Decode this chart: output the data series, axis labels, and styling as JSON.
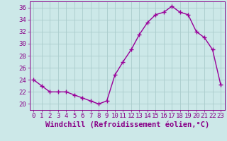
{
  "x": [
    0,
    1,
    2,
    3,
    4,
    5,
    6,
    7,
    8,
    9,
    10,
    11,
    12,
    13,
    14,
    15,
    16,
    17,
    18,
    19,
    20,
    21,
    22,
    23
  ],
  "y": [
    24,
    23,
    22,
    22,
    22,
    21.5,
    21,
    20.5,
    20,
    20.5,
    24.8,
    27,
    29,
    31.5,
    33.5,
    34.8,
    35.2,
    36.2,
    35.2,
    34.8,
    32,
    31,
    29,
    23.2
  ],
  "line_color": "#990099",
  "marker": "+",
  "bg_color": "#cce8e8",
  "grid_color": "#aacccc",
  "xlabel": "Windchill (Refroidissement éolien,°C)",
  "xlim": [
    -0.5,
    23.5
  ],
  "ylim": [
    19.0,
    37.0
  ],
  "yticks": [
    20,
    22,
    24,
    26,
    28,
    30,
    32,
    34,
    36
  ],
  "xticks": [
    0,
    1,
    2,
    3,
    4,
    5,
    6,
    7,
    8,
    9,
    10,
    11,
    12,
    13,
    14,
    15,
    16,
    17,
    18,
    19,
    20,
    21,
    22,
    23
  ],
  "xlabel_fontsize": 7.5,
  "tick_fontsize": 6.5,
  "line_width": 1.0,
  "marker_size": 4,
  "marker_ew": 1.0,
  "axis_color": "#880088"
}
